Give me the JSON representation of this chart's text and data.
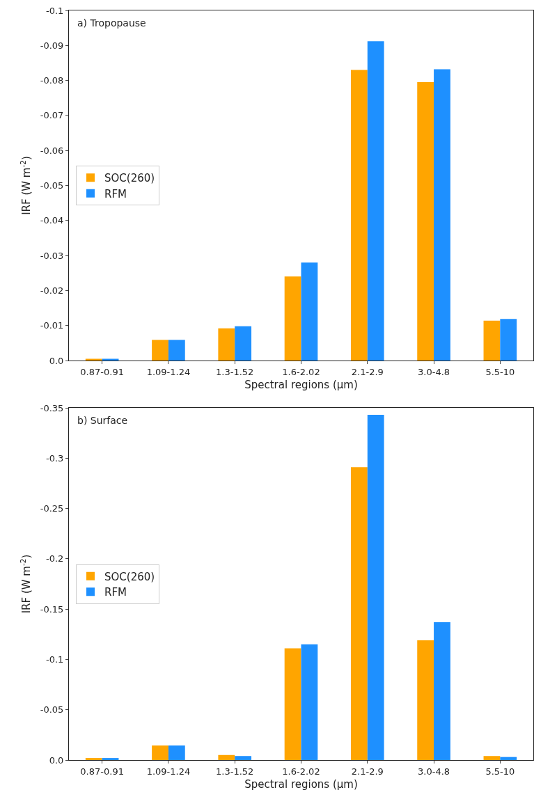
{
  "chart_data": [
    {
      "type": "bar",
      "xlabel": "Spectral regions (μm)",
      "ylabel": "IRF (W m$^{-2}$)",
      "annotations": [
        "a) Tropopause"
      ],
      "categories": [
        "0.87-0.91",
        "1.09-1.24",
        "1.3-1.52",
        "1.6-2.02",
        "2.1-2.9",
        "3.0-4.8",
        "5.5-10"
      ],
      "series": [
        {
          "name": "SOC(260)",
          "color": "#ffa500",
          "values": [
            -0.0005,
            -0.0059,
            -0.0092,
            -0.024,
            -0.083,
            -0.0795,
            -0.0114
          ]
        },
        {
          "name": "RFM",
          "color": "#1e90ff",
          "values": [
            -0.0005,
            -0.0059,
            -0.0098,
            -0.028,
            -0.0912,
            -0.0832,
            -0.0119
          ]
        }
      ],
      "ylim": [
        0,
        -0.1
      ],
      "yticks": [
        {
          "value": 0,
          "label": "0.0"
        },
        -0.01,
        -0.02,
        -0.03,
        -0.04,
        -0.05,
        -0.06,
        -0.07,
        -0.08,
        -0.09,
        -0.1
      ],
      "grid": false,
      "legend": "left"
    },
    {
      "type": "bar",
      "xlabel": "Spectral regions (μm)",
      "ylabel": "IRF (W m$^{-2}$)",
      "annotations": [
        "b) Surface"
      ],
      "categories": [
        "0.87-0.91",
        "1.09-1.24",
        "1.3-1.52",
        "1.6-2.02",
        "2.1-2.9",
        "3.0-4.8",
        "5.5-10"
      ],
      "series": [
        {
          "name": "SOC(260)",
          "color": "#ffa500",
          "values": [
            -0.002,
            -0.0144,
            -0.005,
            -0.111,
            -0.291,
            -0.119,
            -0.004
          ]
        },
        {
          "name": "RFM",
          "color": "#1e90ff",
          "values": [
            -0.002,
            -0.0144,
            -0.004,
            -0.115,
            -0.343,
            -0.137,
            -0.003
          ]
        }
      ],
      "ylim": [
        0,
        -0.35
      ],
      "yticks": [
        {
          "value": 0,
          "label": "0.0"
        },
        -0.05,
        -0.1,
        -0.15,
        -0.2,
        -0.25,
        -0.3,
        -0.35
      ],
      "grid": false,
      "legend": "left"
    }
  ]
}
